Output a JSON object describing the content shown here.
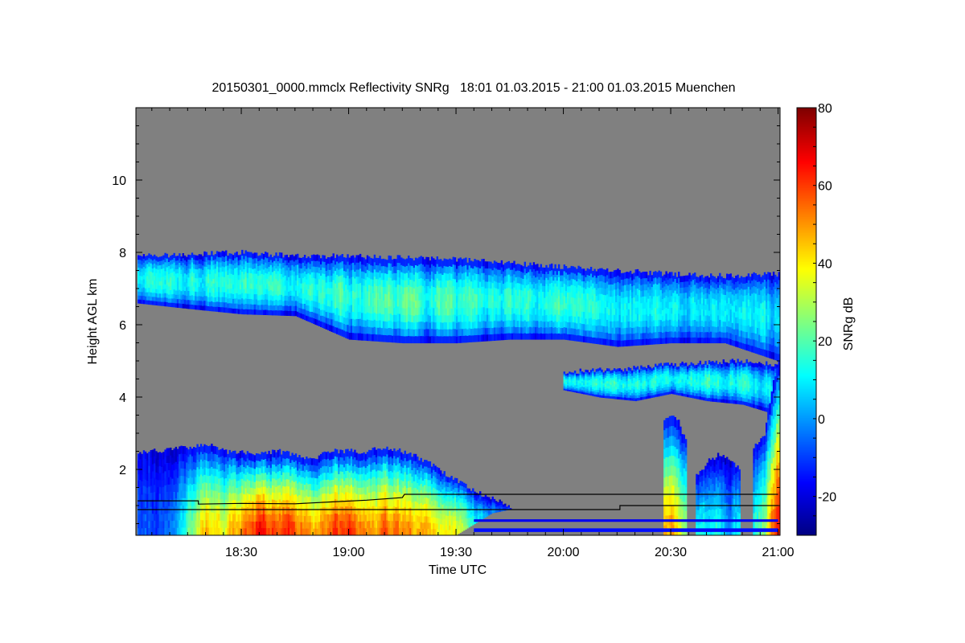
{
  "chart_data": {
    "type": "heatmap",
    "title": "20150301_0000.mmclx Reflectivity SNRg   18:01 01.03.2015 - 21:00 01.03.2015 Muenchen",
    "xlabel": "Time UTC",
    "ylabel": "Height AGL km",
    "colorbar_label": "SNRg dB",
    "x_unit": "minutes after 18:00 UTC",
    "xlim": [
      1,
      180
    ],
    "ylim": [
      0.18,
      12
    ],
    "clim": [
      -30,
      80
    ],
    "colormap": "jet",
    "background_color": "#808080",
    "xticks": [
      {
        "value": 30,
        "label": "18:30"
      },
      {
        "value": 60,
        "label": "19:00"
      },
      {
        "value": 90,
        "label": "19:30"
      },
      {
        "value": 120,
        "label": "20:00"
      },
      {
        "value": 150,
        "label": "20:30"
      },
      {
        "value": 180,
        "label": "21:00"
      }
    ],
    "yticks": [
      {
        "value": 2,
        "label": "2"
      },
      {
        "value": 4,
        "label": "4"
      },
      {
        "value": 6,
        "label": "6"
      },
      {
        "value": 8,
        "label": "8"
      },
      {
        "value": 10,
        "label": "10"
      }
    ],
    "cbar_ticks": [
      {
        "value": -20,
        "label": "-20"
      },
      {
        "value": 0,
        "label": "0"
      },
      {
        "value": 20,
        "label": "20"
      },
      {
        "value": 40,
        "label": "40"
      },
      {
        "value": 60,
        "label": "60"
      },
      {
        "value": 80,
        "label": "80"
      }
    ],
    "layers": [
      {
        "name": "upper-cloud-layer",
        "shape": "center",
        "times": [
          1,
          15,
          30,
          45,
          60,
          75,
          90,
          105,
          120,
          135,
          150,
          165,
          180
        ],
        "top": [
          7.9,
          7.95,
          8.0,
          7.9,
          7.9,
          7.85,
          7.8,
          7.7,
          7.6,
          7.5,
          7.4,
          7.35,
          7.4
        ],
        "bottom": [
          6.6,
          6.45,
          6.3,
          6.25,
          5.6,
          5.5,
          5.5,
          5.6,
          5.6,
          5.4,
          5.5,
          5.5,
          5.0
        ],
        "peak": [
          12,
          14,
          16,
          16,
          18,
          18,
          16,
          14,
          14,
          12,
          10,
          10,
          8
        ]
      },
      {
        "name": "mid-cloud-layer",
        "shape": "center",
        "times": [
          120,
          130,
          140,
          150,
          160,
          170,
          180
        ],
        "top": [
          4.7,
          4.75,
          4.8,
          4.9,
          4.95,
          5.0,
          4.9
        ],
        "bottom": [
          4.2,
          4.0,
          3.9,
          4.1,
          3.9,
          3.8,
          3.5
        ],
        "peak": [
          10,
          14,
          12,
          10,
          15,
          14,
          10
        ]
      },
      {
        "name": "low-precipitation-layer",
        "shape": "bottom",
        "times": [
          1,
          8,
          14,
          20,
          25,
          30,
          35,
          40,
          45,
          50,
          55,
          60,
          65,
          70,
          75,
          80,
          85,
          90,
          95,
          100,
          105
        ],
        "top": [
          2.5,
          2.5,
          2.6,
          2.7,
          2.5,
          2.5,
          2.4,
          2.5,
          2.4,
          2.3,
          2.5,
          2.5,
          2.5,
          2.6,
          2.5,
          2.3,
          2.0,
          1.7,
          1.4,
          1.2,
          1.0
        ],
        "bottom": [
          0.2,
          0.2,
          0.2,
          0.2,
          0.2,
          0.2,
          0.2,
          0.2,
          0.2,
          0.2,
          0.2,
          0.2,
          0.2,
          0.2,
          0.2,
          0.2,
          0.2,
          0.2,
          0.5,
          0.8,
          0.9
        ],
        "peak": [
          -8,
          -5,
          15,
          45,
          35,
          55,
          65,
          62,
          55,
          50,
          58,
          62,
          50,
          55,
          50,
          45,
          40,
          35,
          10,
          0,
          -5
        ]
      },
      {
        "name": "shower-1",
        "shape": "bottom",
        "times": [
          148,
          150,
          152,
          154
        ],
        "top": [
          3.4,
          3.5,
          3.3,
          2.8
        ],
        "bottom": [
          0.2,
          0.2,
          0.2,
          0.2
        ],
        "peak": [
          45,
          50,
          40,
          25
        ]
      },
      {
        "name": "shower-2",
        "shape": "bottom",
        "times": [
          157,
          160,
          163,
          166,
          169
        ],
        "top": [
          1.8,
          2.2,
          2.4,
          2.3,
          2.0
        ],
        "bottom": [
          0.2,
          0.2,
          0.2,
          0.2,
          0.2
        ],
        "peak": [
          15,
          10,
          18,
          5,
          10
        ]
      },
      {
        "name": "shower-3",
        "shape": "bottom",
        "times": [
          173,
          176,
          178,
          180
        ],
        "top": [
          2.6,
          3.0,
          4.2,
          5.0
        ],
        "bottom": [
          0.2,
          0.2,
          0.2,
          0.2
        ],
        "peak": [
          15,
          25,
          55,
          65
        ]
      }
    ],
    "clutter_bands": [
      {
        "from": 95,
        "to": 180,
        "bottom": 0.55,
        "top": 0.62,
        "value": -18
      },
      {
        "from": 95,
        "to": 180,
        "bottom": 0.27,
        "top": 0.37,
        "value": -15
      }
    ],
    "lines": [
      {
        "name": "boundary-line-upper",
        "points": [
          [
            1,
            1.13
          ],
          [
            18,
            1.13
          ],
          [
            18,
            1.04
          ],
          [
            30,
            1.06
          ],
          [
            45,
            1.05
          ],
          [
            55,
            1.1
          ],
          [
            65,
            1.15
          ],
          [
            75,
            1.22
          ],
          [
            75.6,
            1.31
          ],
          [
            180,
            1.31
          ]
        ]
      },
      {
        "name": "boundary-line-lower",
        "points": [
          [
            1,
            0.89
          ],
          [
            135.8,
            0.89
          ],
          [
            135.8,
            1.0
          ],
          [
            180,
            1.0
          ]
        ]
      }
    ]
  }
}
